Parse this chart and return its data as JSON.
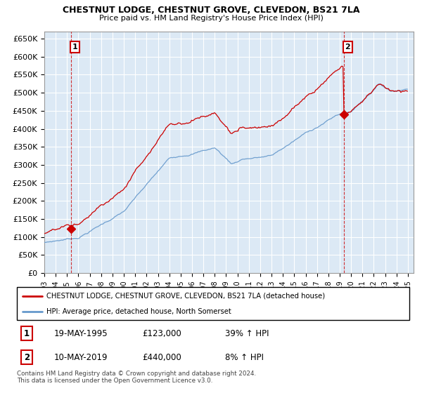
{
  "title": "CHESTNUT LODGE, CHESTNUT GROVE, CLEVEDON, BS21 7LA",
  "subtitle": "Price paid vs. HM Land Registry's House Price Index (HPI)",
  "ylabel_ticks": [
    "£0",
    "£50K",
    "£100K",
    "£150K",
    "£200K",
    "£250K",
    "£300K",
    "£350K",
    "£400K",
    "£450K",
    "£500K",
    "£550K",
    "£600K",
    "£650K"
  ],
  "ylim": [
    0,
    670000
  ],
  "xlim_start": 1993.0,
  "xlim_end": 2025.5,
  "xticks": [
    1993,
    1994,
    1995,
    1996,
    1997,
    1998,
    1999,
    2000,
    2001,
    2002,
    2003,
    2004,
    2005,
    2006,
    2007,
    2008,
    2009,
    2010,
    2011,
    2012,
    2013,
    2014,
    2015,
    2016,
    2017,
    2018,
    2019,
    2020,
    2021,
    2022,
    2023,
    2024,
    2025
  ],
  "sale1_x": 1995.37,
  "sale1_y": 123000,
  "sale2_x": 2019.36,
  "sale2_y": 440000,
  "legend_line1": "CHESTNUT LODGE, CHESTNUT GROVE, CLEVEDON, BS21 7LA (detached house)",
  "legend_line2": "HPI: Average price, detached house, North Somerset",
  "annotation1_label": "1",
  "annotation2_label": "2",
  "table_row1": [
    "1",
    "19-MAY-1995",
    "£123,000",
    "39% ↑ HPI"
  ],
  "table_row2": [
    "2",
    "10-MAY-2019",
    "£440,000",
    "8% ↑ HPI"
  ],
  "footer": "Contains HM Land Registry data © Crown copyright and database right 2024.\nThis data is licensed under the Open Government Licence v3.0.",
  "hpi_color": "#6699cc",
  "sold_color": "#cc0000",
  "chart_bg": "#dce9f5",
  "outer_bg": "#ffffff",
  "grid_color": "#ffffff",
  "dashed_line_color": "#cc0000"
}
